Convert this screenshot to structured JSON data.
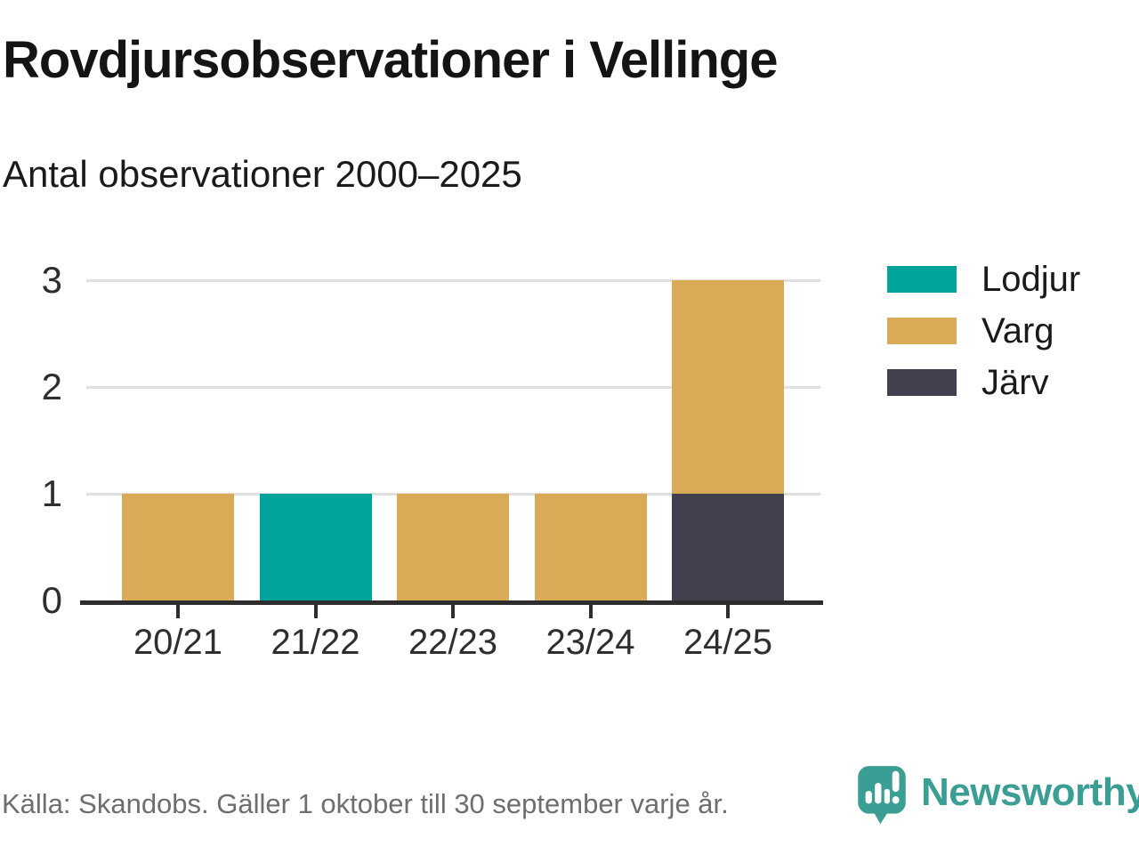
{
  "header": {
    "title": "Rovdjursobservationer i Vellinge",
    "subtitle": "Antal observationer 2000–2025"
  },
  "chart_data": {
    "type": "bar",
    "stacked": true,
    "title": "Rovdjursobservationer i Vellinge",
    "subtitle": "Antal observationer 2000–2025",
    "categories": [
      "20/21",
      "21/22",
      "22/23",
      "23/24",
      "24/25"
    ],
    "series": [
      {
        "name": "Lodjur",
        "color": "#00a49a",
        "values": [
          0,
          1,
          0,
          0,
          0
        ]
      },
      {
        "name": "Varg",
        "color": "#d9ab57",
        "values": [
          1,
          0,
          1,
          1,
          2
        ]
      },
      {
        "name": "Järv",
        "color": "#42404e",
        "values": [
          0,
          0,
          0,
          0,
          1
        ]
      }
    ],
    "stack_order_bottom_to_top": [
      "Järv",
      "Varg",
      "Lodjur"
    ],
    "xlabel": "",
    "ylabel": "",
    "ylim": [
      0,
      3
    ],
    "yticks": [
      0,
      1,
      2,
      3
    ],
    "grid": "horizontal",
    "legend_position": "right"
  },
  "footer": {
    "source": "Källa: Skandobs. Gäller 1 oktober till 30 september varje år.",
    "brand": "Newsworthy"
  },
  "colors": {
    "teal": "#00a49a",
    "tan": "#d9ab57",
    "dark": "#42404e",
    "logo_teal": "#3b9e95",
    "gridline": "#e0e0e0",
    "axis": "#2d2d2d",
    "source_text": "#6e6e6e"
  }
}
